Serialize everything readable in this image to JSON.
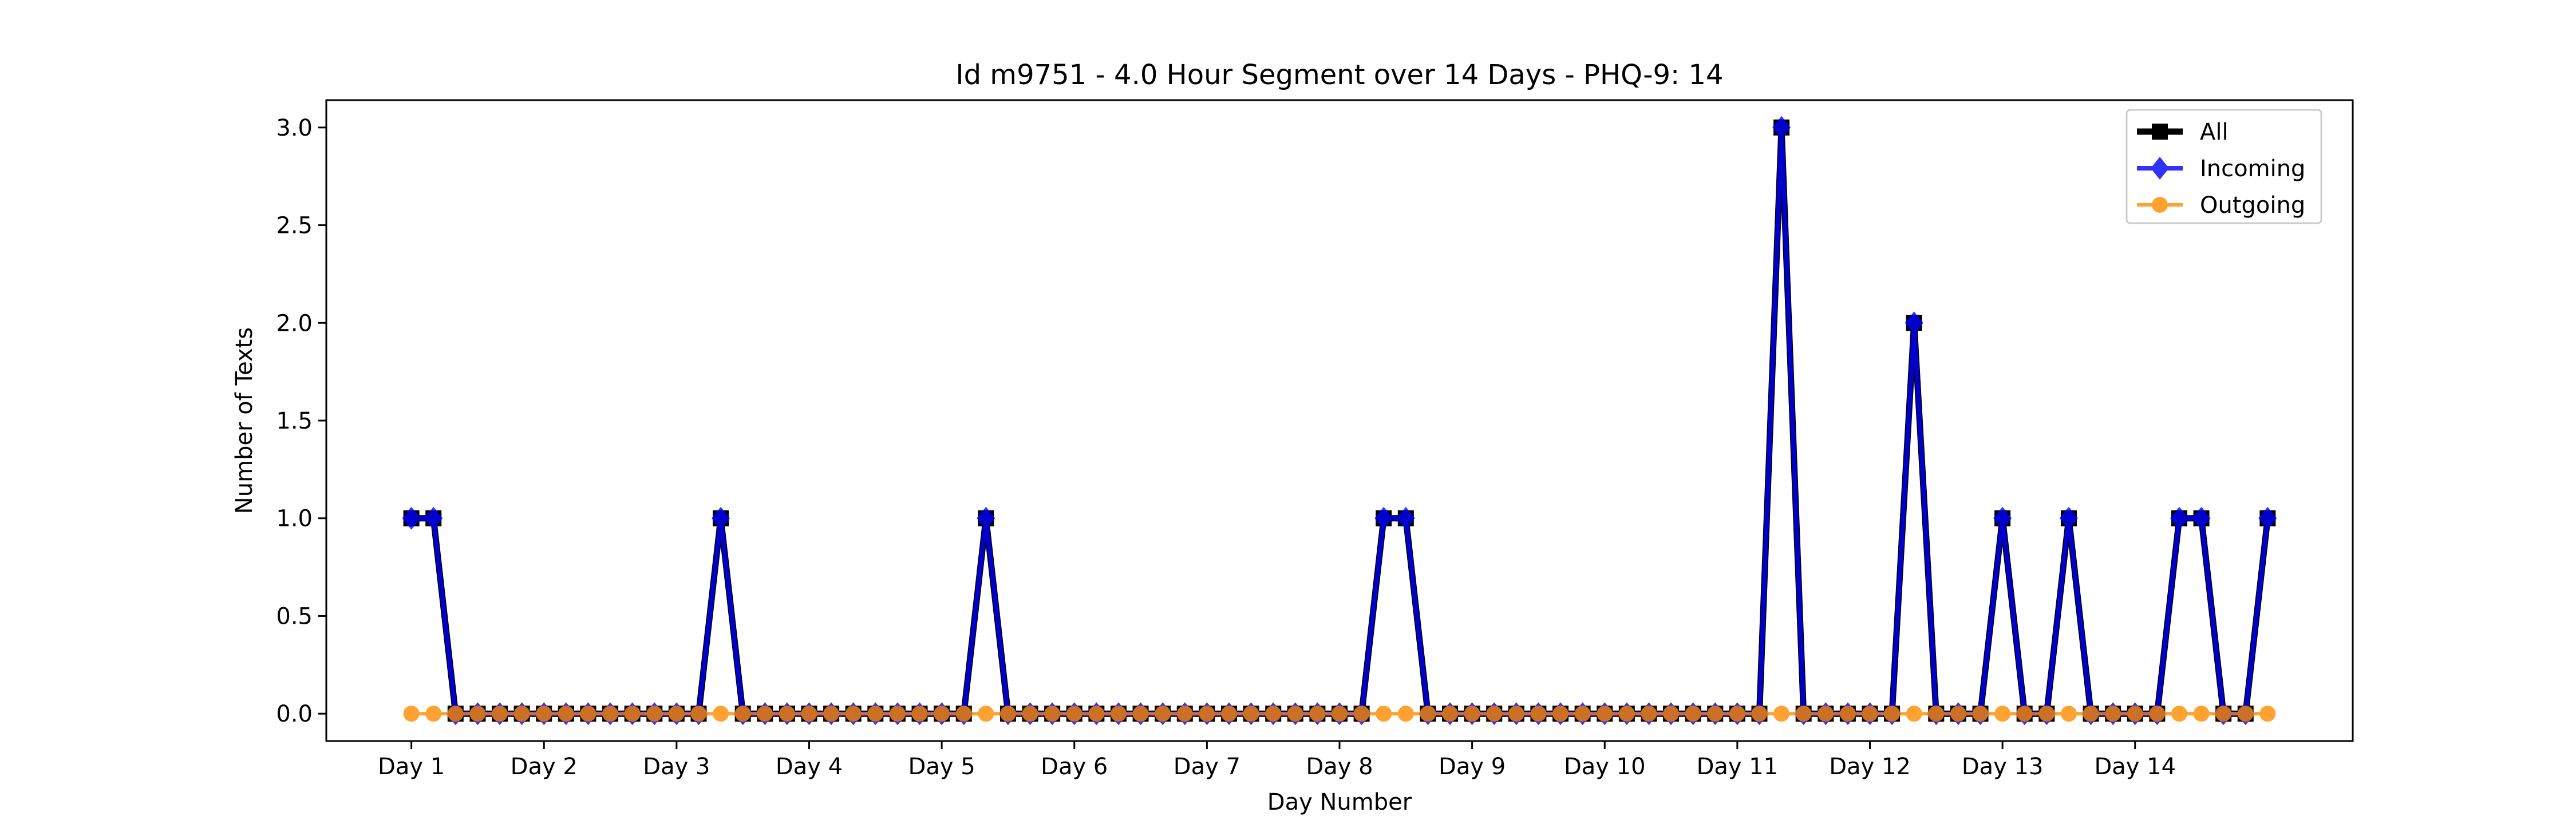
{
  "chart_data": {
    "type": "line",
    "title": "Id m9751 - 4.0 Hour Segment over 14 Days - PHQ-9: 14",
    "xlabel": "Day Number",
    "ylabel": "Number of Texts",
    "x_tick_labels": [
      "Day 1",
      "Day 2",
      "Day 3",
      "Day 4",
      "Day 5",
      "Day 6",
      "Day 7",
      "Day 8",
      "Day 9",
      "Day 10",
      "Day 11",
      "Day 12",
      "Day 13",
      "Day 14"
    ],
    "y_ticks": [
      "0.0",
      "0.5",
      "1.0",
      "1.5",
      "2.0",
      "2.5",
      "3.0"
    ],
    "ylim": [
      -0.14,
      3.14
    ],
    "segments_per_day": 6,
    "legend_position": "upper-right",
    "grid": false,
    "series": [
      {
        "name": "All",
        "color": "#000000",
        "marker": "square",
        "values": [
          1,
          1,
          0,
          0,
          0,
          0,
          0,
          0,
          0,
          0,
          0,
          0,
          0,
          0,
          1,
          0,
          0,
          0,
          0,
          0,
          0,
          0,
          0,
          0,
          0,
          0,
          1,
          0,
          0,
          0,
          0,
          0,
          0,
          0,
          0,
          0,
          0,
          0,
          0,
          0,
          0,
          0,
          0,
          0,
          1,
          1,
          0,
          0,
          0,
          0,
          0,
          0,
          0,
          0,
          0,
          0,
          0,
          0,
          0,
          0,
          0,
          0,
          3,
          0,
          0,
          0,
          0,
          0,
          2,
          0,
          0,
          0,
          1,
          0,
          0,
          1,
          0,
          0,
          0,
          0,
          1,
          1,
          0,
          0,
          1
        ]
      },
      {
        "name": "Incoming",
        "color": "#0000ff",
        "marker": "diamond",
        "values": [
          1,
          1,
          0,
          0,
          0,
          0,
          0,
          0,
          0,
          0,
          0,
          0,
          0,
          0,
          1,
          0,
          0,
          0,
          0,
          0,
          0,
          0,
          0,
          0,
          0,
          0,
          1,
          0,
          0,
          0,
          0,
          0,
          0,
          0,
          0,
          0,
          0,
          0,
          0,
          0,
          0,
          0,
          0,
          0,
          1,
          1,
          0,
          0,
          0,
          0,
          0,
          0,
          0,
          0,
          0,
          0,
          0,
          0,
          0,
          0,
          0,
          0,
          3,
          0,
          0,
          0,
          0,
          0,
          2,
          0,
          0,
          0,
          1,
          0,
          0,
          1,
          0,
          0,
          0,
          0,
          1,
          1,
          0,
          0,
          1
        ]
      },
      {
        "name": "Outgoing",
        "color": "#ff8c00",
        "marker": "circle",
        "values": [
          0,
          0,
          0,
          0,
          0,
          0,
          0,
          0,
          0,
          0,
          0,
          0,
          0,
          0,
          0,
          0,
          0,
          0,
          0,
          0,
          0,
          0,
          0,
          0,
          0,
          0,
          0,
          0,
          0,
          0,
          0,
          0,
          0,
          0,
          0,
          0,
          0,
          0,
          0,
          0,
          0,
          0,
          0,
          0,
          0,
          0,
          0,
          0,
          0,
          0,
          0,
          0,
          0,
          0,
          0,
          0,
          0,
          0,
          0,
          0,
          0,
          0,
          0,
          0,
          0,
          0,
          0,
          0,
          0,
          0,
          0,
          0,
          0,
          0,
          0,
          0,
          0,
          0,
          0,
          0,
          0,
          0,
          0,
          0,
          0
        ]
      }
    ]
  }
}
